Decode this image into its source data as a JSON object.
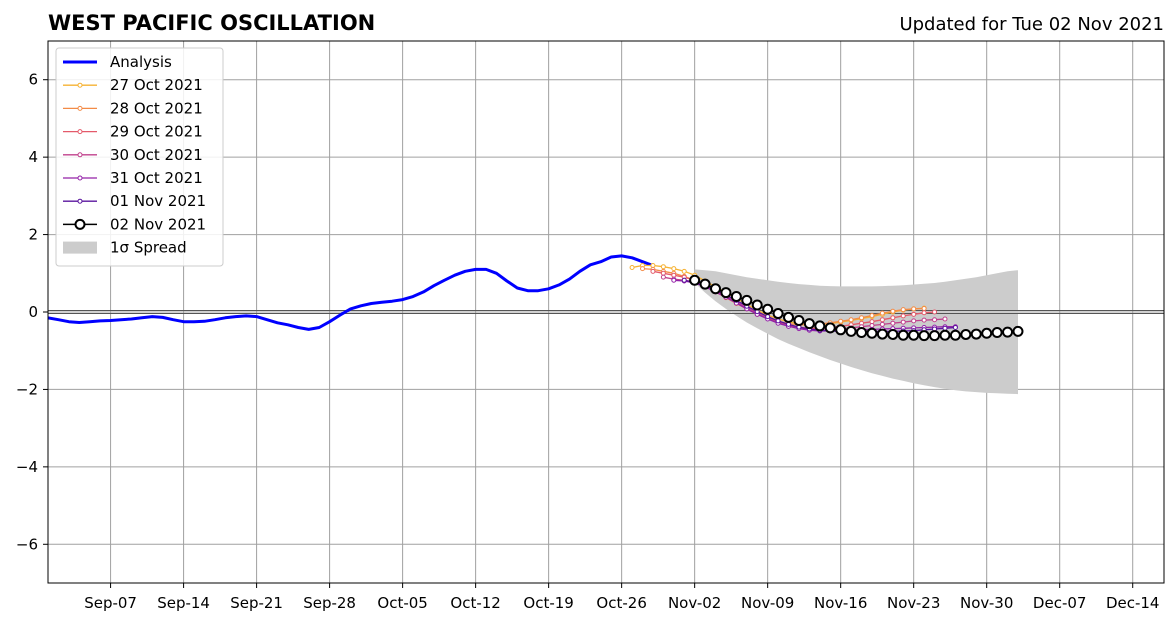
{
  "header": {
    "title": "WEST PACIFIC OSCILLATION",
    "updated": "Updated for Tue 02 Nov 2021"
  },
  "chart_data": {
    "type": "line",
    "title": "WEST PACIFIC OSCILLATION",
    "xlabel": "",
    "ylabel": "",
    "x_start": "2021-09-01",
    "xlim_days": [
      0,
      107
    ],
    "ylim": [
      -7,
      7
    ],
    "grid": true,
    "legend_position": "top-left",
    "x_tick_labels": [
      {
        "day": 6,
        "label": "Sep-07"
      },
      {
        "day": 13,
        "label": "Sep-14"
      },
      {
        "day": 20,
        "label": "Sep-21"
      },
      {
        "day": 27,
        "label": "Sep-28"
      },
      {
        "day": 34,
        "label": "Oct-05"
      },
      {
        "day": 41,
        "label": "Oct-12"
      },
      {
        "day": 48,
        "label": "Oct-19"
      },
      {
        "day": 55,
        "label": "Oct-26"
      },
      {
        "day": 62,
        "label": "Nov-02"
      },
      {
        "day": 69,
        "label": "Nov-09"
      },
      {
        "day": 76,
        "label": "Nov-16"
      },
      {
        "day": 83,
        "label": "Nov-23"
      },
      {
        "day": 90,
        "label": "Nov-30"
      },
      {
        "day": 97,
        "label": "Dec-07"
      },
      {
        "day": 104,
        "label": "Dec-14"
      }
    ],
    "y_ticks": [
      {
        "value": 6,
        "label": "6"
      },
      {
        "value": 4,
        "label": "4"
      },
      {
        "value": 2,
        "label": "2"
      },
      {
        "value": 0,
        "label": "0"
      },
      {
        "value": -2,
        "label": "−2"
      },
      {
        "value": -4,
        "label": "−4"
      },
      {
        "value": -6,
        "label": "−6"
      }
    ],
    "series": [
      {
        "name": "Analysis",
        "color": "#0000ff",
        "style": "thick-line",
        "x0": 0,
        "values": [
          -0.15,
          -0.2,
          -0.25,
          -0.27,
          -0.25,
          -0.23,
          -0.22,
          -0.2,
          -0.18,
          -0.15,
          -0.12,
          -0.14,
          -0.2,
          -0.25,
          -0.25,
          -0.24,
          -0.2,
          -0.15,
          -0.12,
          -0.1,
          -0.12,
          -0.2,
          -0.28,
          -0.33,
          -0.4,
          -0.45,
          -0.4,
          -0.25,
          -0.08,
          0.08,
          0.16,
          0.22,
          0.25,
          0.28,
          0.32,
          0.4,
          0.52,
          0.68,
          0.82,
          0.95,
          1.05,
          1.1,
          1.1,
          1.0,
          0.8,
          0.62,
          0.55,
          0.55,
          0.6,
          0.7,
          0.85,
          1.05,
          1.22,
          1.3,
          1.42,
          1.45,
          1.4,
          1.3,
          1.2
        ]
      },
      {
        "name": "27 Oct 2021",
        "color": "#f6b233",
        "style": "thin-marker",
        "x0": 56,
        "values": [
          1.15,
          1.2,
          1.2,
          1.17,
          1.12,
          1.05,
          0.95,
          0.8,
          0.65,
          0.5,
          0.35,
          0.2,
          0.05,
          -0.08,
          -0.18,
          -0.25,
          -0.3,
          -0.32,
          -0.32,
          -0.3,
          -0.26,
          -0.22,
          -0.17,
          -0.12,
          -0.06,
          0.0,
          0.05,
          0.08,
          0.1
        ]
      },
      {
        "name": "28 Oct 2021",
        "color": "#f38b47",
        "style": "thin-marker",
        "x0": 57,
        "values": [
          1.12,
          1.1,
          1.05,
          1.0,
          0.92,
          0.82,
          0.68,
          0.52,
          0.37,
          0.22,
          0.08,
          -0.06,
          -0.16,
          -0.24,
          -0.3,
          -0.33,
          -0.33,
          -0.31,
          -0.28,
          -0.24,
          -0.2,
          -0.15,
          -0.09,
          -0.03,
          0.02,
          0.06,
          0.08,
          0.09
        ]
      },
      {
        "name": "29 Oct 2021",
        "color": "#e45a6a",
        "style": "thin-marker",
        "x0": 58,
        "values": [
          1.05,
          1.0,
          0.95,
          0.9,
          0.82,
          0.7,
          0.56,
          0.4,
          0.25,
          0.1,
          -0.04,
          -0.16,
          -0.26,
          -0.34,
          -0.39,
          -0.42,
          -0.42,
          -0.4,
          -0.37,
          -0.33,
          -0.29,
          -0.25,
          -0.2,
          -0.15,
          -0.1,
          -0.06,
          -0.02,
          0.0
        ]
      },
      {
        "name": "30 Oct 2021",
        "color": "#c0408c",
        "style": "thin-marker",
        "x0": 59,
        "values": [
          0.9,
          0.85,
          0.82,
          0.78,
          0.68,
          0.55,
          0.41,
          0.26,
          0.11,
          -0.03,
          -0.16,
          -0.27,
          -0.36,
          -0.42,
          -0.46,
          -0.47,
          -0.46,
          -0.44,
          -0.41,
          -0.38,
          -0.35,
          -0.32,
          -0.29,
          -0.26,
          -0.23,
          -0.21,
          -0.2,
          -0.18
        ]
      },
      {
        "name": "31 Oct 2021",
        "color": "#9321a8",
        "style": "thin-marker",
        "x0": 60,
        "values": [
          0.82,
          0.8,
          0.75,
          0.65,
          0.52,
          0.38,
          0.23,
          0.08,
          -0.06,
          -0.18,
          -0.29,
          -0.37,
          -0.43,
          -0.47,
          -0.49,
          -0.49,
          -0.48,
          -0.47,
          -0.46,
          -0.45,
          -0.44,
          -0.43,
          -0.42,
          -0.41,
          -0.4,
          -0.39,
          -0.38,
          -0.38
        ]
      },
      {
        "name": "01 Nov 2021",
        "color": "#5a149e",
        "style": "thin-marker",
        "x0": 61,
        "values": [
          0.82,
          0.76,
          0.68,
          0.57,
          0.44,
          0.3,
          0.15,
          0.01,
          -0.12,
          -0.23,
          -0.32,
          -0.39,
          -0.44,
          -0.47,
          -0.49,
          -0.5,
          -0.5,
          -0.5,
          -0.5,
          -0.5,
          -0.5,
          -0.49,
          -0.48,
          -0.46,
          -0.44,
          -0.42,
          -0.4
        ]
      },
      {
        "name": "02 Nov 2021",
        "color": "#000000",
        "style": "open-circle",
        "x0": 62,
        "values": [
          0.82,
          0.72,
          0.6,
          0.5,
          0.4,
          0.3,
          0.18,
          0.07,
          -0.04,
          -0.14,
          -0.22,
          -0.3,
          -0.36,
          -0.41,
          -0.46,
          -0.5,
          -0.53,
          -0.55,
          -0.57,
          -0.58,
          -0.6,
          -0.6,
          -0.61,
          -0.61,
          -0.6,
          -0.6,
          -0.58,
          -0.57,
          -0.55,
          -0.53,
          -0.52,
          -0.5
        ]
      }
    ],
    "spread": {
      "name": "1σ Spread",
      "color": "#cccccc",
      "x0": 62,
      "upper": [
        1.1,
        1.08,
        1.05,
        1.0,
        0.95,
        0.9,
        0.86,
        0.82,
        0.78,
        0.75,
        0.72,
        0.7,
        0.68,
        0.67,
        0.66,
        0.66,
        0.66,
        0.66,
        0.67,
        0.68,
        0.69,
        0.71,
        0.73,
        0.75,
        0.78,
        0.82,
        0.86,
        0.9,
        0.95,
        1.0,
        1.05,
        1.08
      ],
      "lower": [
        0.75,
        0.5,
        0.28,
        0.08,
        -0.1,
        -0.27,
        -0.42,
        -0.56,
        -0.7,
        -0.82,
        -0.93,
        -1.04,
        -1.14,
        -1.24,
        -1.33,
        -1.42,
        -1.5,
        -1.58,
        -1.65,
        -1.72,
        -1.78,
        -1.84,
        -1.89,
        -1.94,
        -1.98,
        -2.02,
        -2.05,
        -2.07,
        -2.09,
        -2.1,
        -2.11,
        -2.12
      ]
    },
    "legend": [
      {
        "label": "Analysis",
        "series": 0
      },
      {
        "label": "27 Oct 2021",
        "series": 1
      },
      {
        "label": "28 Oct 2021",
        "series": 2
      },
      {
        "label": "29 Oct 2021",
        "series": 3
      },
      {
        "label": "30 Oct 2021",
        "series": 4
      },
      {
        "label": "31 Oct 2021",
        "series": 5
      },
      {
        "label": "01 Nov 2021",
        "series": 6
      },
      {
        "label": "02 Nov 2021",
        "series": 7
      },
      {
        "label": "1σ Spread",
        "series": "spread"
      }
    ]
  }
}
